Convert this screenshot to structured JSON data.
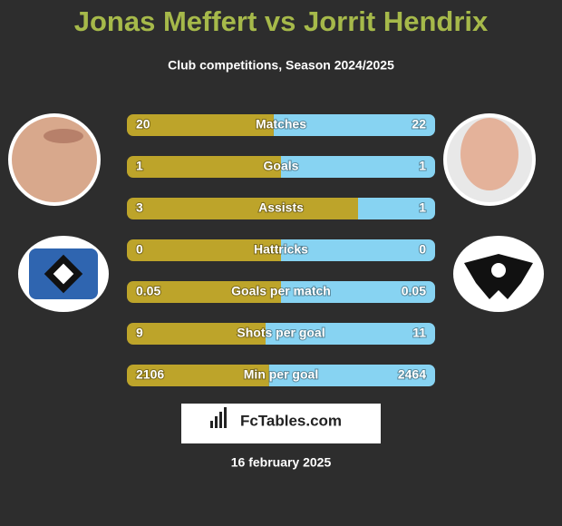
{
  "header": {
    "title": "Jonas Meffert vs Jorrit Hendrix",
    "subtitle": "Club competitions, Season 2024/2025"
  },
  "rows": [
    {
      "label": "Matches",
      "left": 20,
      "right": 22
    },
    {
      "label": "Goals",
      "left": 1,
      "right": 1
    },
    {
      "label": "Assists",
      "left": 3,
      "right": 1
    },
    {
      "label": "Hattricks",
      "left": 0,
      "right": 0
    },
    {
      "label": "Goals per match",
      "left": 0.05,
      "right": 0.05
    },
    {
      "label": "Shots per goal",
      "left": 9,
      "right": 11
    },
    {
      "label": "Min per goal",
      "left": 2106,
      "right": 2464
    }
  ],
  "brand": "FcTables.com",
  "date": "16 february 2025"
}
